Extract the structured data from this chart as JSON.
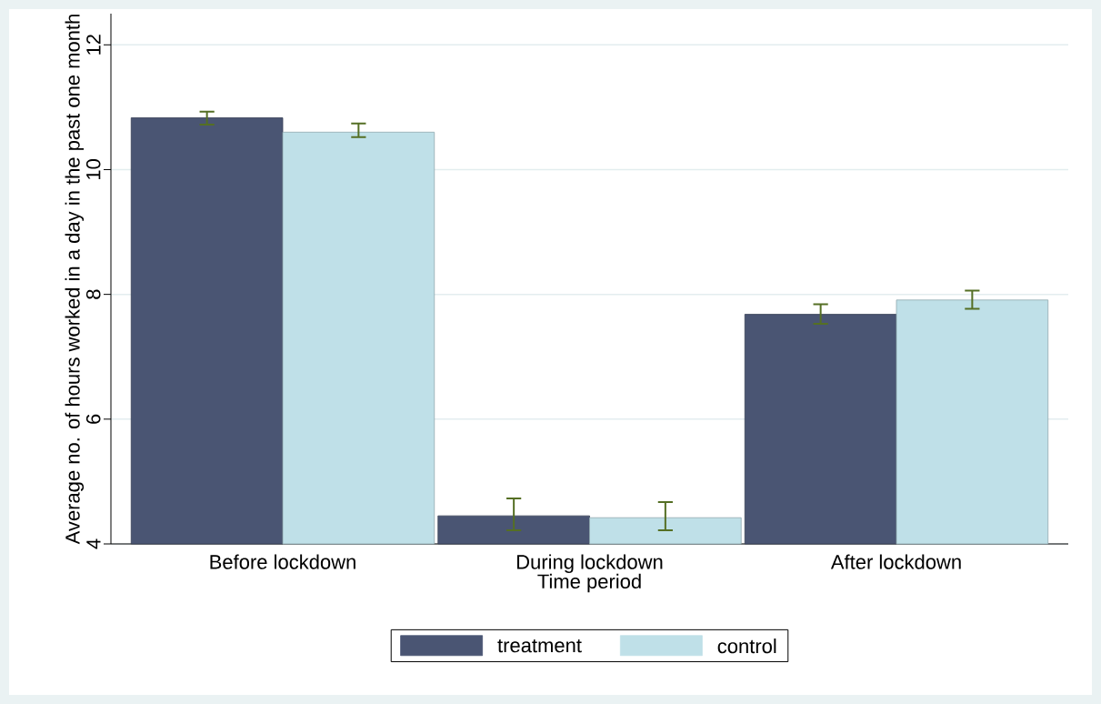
{
  "chart_data": {
    "type": "bar",
    "xlabel": "Time period",
    "ylabel": "Average no. of hours worked in a day in the past one month",
    "categories": [
      "Before lockdown",
      "During lockdown",
      "After lockdown"
    ],
    "series": [
      {
        "name": "treatment",
        "color": "#4a5573",
        "values": [
          10.83,
          4.45,
          7.68
        ],
        "errors": [
          [
            10.72,
            10.93
          ],
          [
            4.22,
            4.73
          ],
          [
            7.53,
            7.84
          ]
        ]
      },
      {
        "name": "control",
        "color": "#bfe0e8",
        "values": [
          10.6,
          4.42,
          7.91
        ],
        "errors": [
          [
            10.52,
            10.74
          ],
          [
            4.22,
            4.67
          ],
          [
            7.77,
            8.06
          ]
        ]
      }
    ],
    "ylim": [
      4,
      12.5
    ],
    "yticks": [
      4,
      6,
      8,
      10,
      12
    ],
    "grid": "y",
    "legend": "bottom"
  }
}
